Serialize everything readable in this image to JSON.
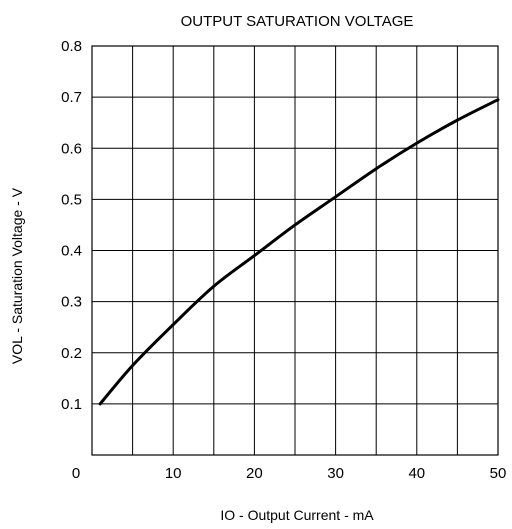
{
  "chart_data": {
    "type": "line",
    "title": "OUTPUT SATURATION VOLTAGE",
    "xlabel": "IO - Output Current - mA",
    "ylabel": "VOL - Saturation Voltage - V",
    "xlim": [
      0,
      50
    ],
    "ylim": [
      0,
      0.8
    ],
    "grid": true,
    "x_ticks": [
      0,
      10,
      20,
      30,
      40,
      50
    ],
    "x_tick_labels": [
      "0",
      "10",
      "20",
      "30",
      "40",
      "50"
    ],
    "y_ticks": [
      0.1,
      0.2,
      0.3,
      0.4,
      0.5,
      0.6,
      0.7,
      0.8
    ],
    "y_tick_labels": [
      "0.1",
      "0.2",
      "0.3",
      "0.4",
      "0.5",
      "0.6",
      "0.7",
      "0.8"
    ],
    "x_grid_step": 5,
    "y_grid_step": 0.1,
    "series": [
      {
        "x": [
          1,
          5,
          10,
          15,
          20,
          25,
          30,
          35,
          40,
          45,
          50
        ],
        "y": [
          0.1,
          0.175,
          0.255,
          0.33,
          0.39,
          0.45,
          0.505,
          0.56,
          0.61,
          0.655,
          0.695
        ]
      }
    ]
  }
}
